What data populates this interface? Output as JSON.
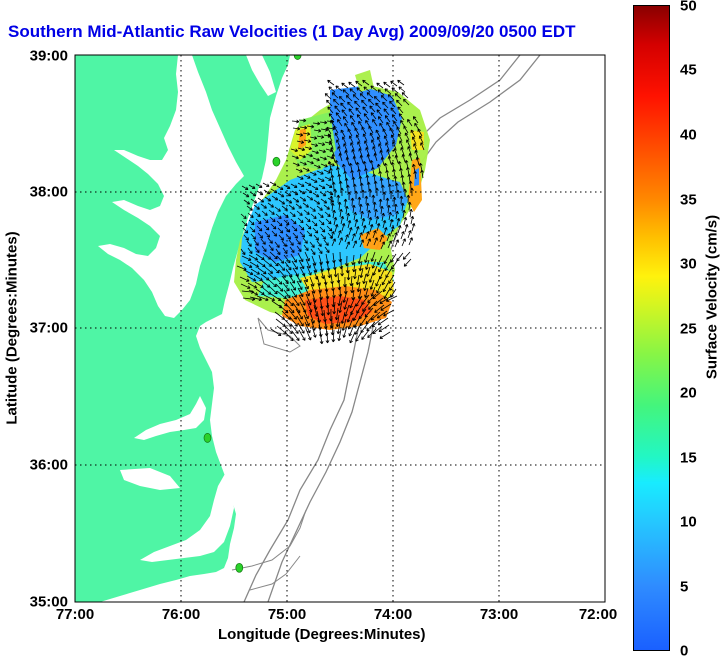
{
  "title": "Southern Mid-Atlantic Raw Velocities (1 Day Avg) 2009/09/20 0500 EDT",
  "x_axis": {
    "label": "Longitude (Degrees:Minutes)",
    "ticks": [
      "77:00",
      "76:00",
      "75:00",
      "74:00",
      "73:00",
      "72:00"
    ]
  },
  "y_axis": {
    "label": "Latitude (Degrees:Minutes)",
    "ticks": [
      "39:00",
      "38:00",
      "37:00",
      "36:00",
      "35:00"
    ]
  },
  "colorbar": {
    "label": "Surface Velocity (cm/s)",
    "ticks": [
      "50",
      "45",
      "40",
      "35",
      "30",
      "25",
      "20",
      "15",
      "10",
      "5",
      "0"
    ],
    "range": [
      0,
      50
    ]
  },
  "map_region": {
    "lon_range": [
      -77,
      -72
    ],
    "lat_range": [
      35,
      39
    ]
  },
  "colors": {
    "land": "#4ff5a5",
    "water": "#ffffff",
    "title": "#0000e6",
    "station": "#2bd22b"
  },
  "stations": [
    {
      "lon": -74.9,
      "lat": 39.0
    },
    {
      "lon": -75.1,
      "lat": 38.22
    },
    {
      "lon": -75.75,
      "lat": 36.2
    },
    {
      "lon": -75.45,
      "lat": 35.25
    }
  ]
}
